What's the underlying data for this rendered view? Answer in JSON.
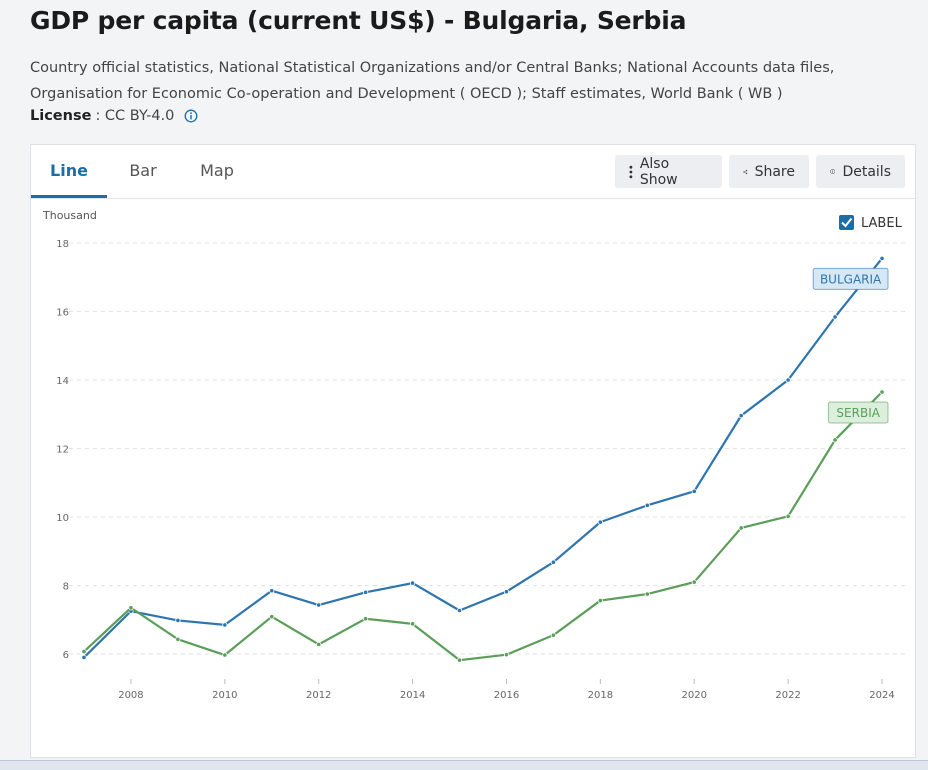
{
  "page": {
    "title": "GDP per capita (current US$) - Bulgaria, Serbia",
    "source": "Country official statistics, National Statistical Organizations and/or Central Banks; National Accounts data files, Organisation for Economic Co-operation and Development ( OECD ); Staff estimates, World Bank ( WB )",
    "license_label": "License",
    "license_value": ": CC BY-4.0"
  },
  "tabs": [
    {
      "label": "Line",
      "active": true
    },
    {
      "label": "Bar",
      "active": false
    },
    {
      "label": "Map",
      "active": false
    }
  ],
  "toolbar": {
    "also_show": {
      "label": "Also Show",
      "icon": "vertical-dots-icon"
    },
    "share": {
      "label": "Share",
      "icon": "share-icon"
    },
    "details": {
      "label": "Details",
      "icon": "info-circle-icon"
    }
  },
  "label_toggle": {
    "label": "LABEL",
    "checked": true
  },
  "colors": {
    "accent": "#1a6ea5",
    "bulgaria": "#2e75b0",
    "serbia": "#5a9e5a"
  },
  "chart_data": {
    "type": "line",
    "ylabel": "Thousand",
    "ylim": [
      5,
      18.5
    ],
    "y_ticks": [
      6,
      8,
      10,
      12,
      14,
      16,
      18
    ],
    "x_ticks": [
      2008,
      2010,
      2012,
      2014,
      2016,
      2018,
      2020,
      2022,
      2024
    ],
    "grid": "horizontal dashed",
    "x": [
      2007,
      2008,
      2009,
      2010,
      2011,
      2012,
      2013,
      2014,
      2015,
      2016,
      2017,
      2018,
      2019,
      2020,
      2021,
      2022,
      2023,
      2024
    ],
    "series": [
      {
        "name": "BULGARIA",
        "color": "#2e75b0",
        "label_fill": "#d6e8f5",
        "values": [
          5.9,
          7.25,
          6.98,
          6.85,
          7.85,
          7.43,
          7.8,
          8.07,
          7.27,
          7.82,
          8.68,
          9.85,
          10.34,
          10.75,
          12.96,
          14.0,
          15.84,
          17.55
        ]
      },
      {
        "name": "SERBIA",
        "color": "#5a9e5a",
        "label_fill": "#dcefdc",
        "values": [
          6.07,
          7.35,
          6.43,
          5.97,
          7.09,
          6.28,
          7.03,
          6.88,
          5.82,
          5.98,
          6.55,
          7.56,
          7.75,
          8.1,
          9.68,
          10.02,
          12.25,
          13.65
        ]
      }
    ]
  }
}
